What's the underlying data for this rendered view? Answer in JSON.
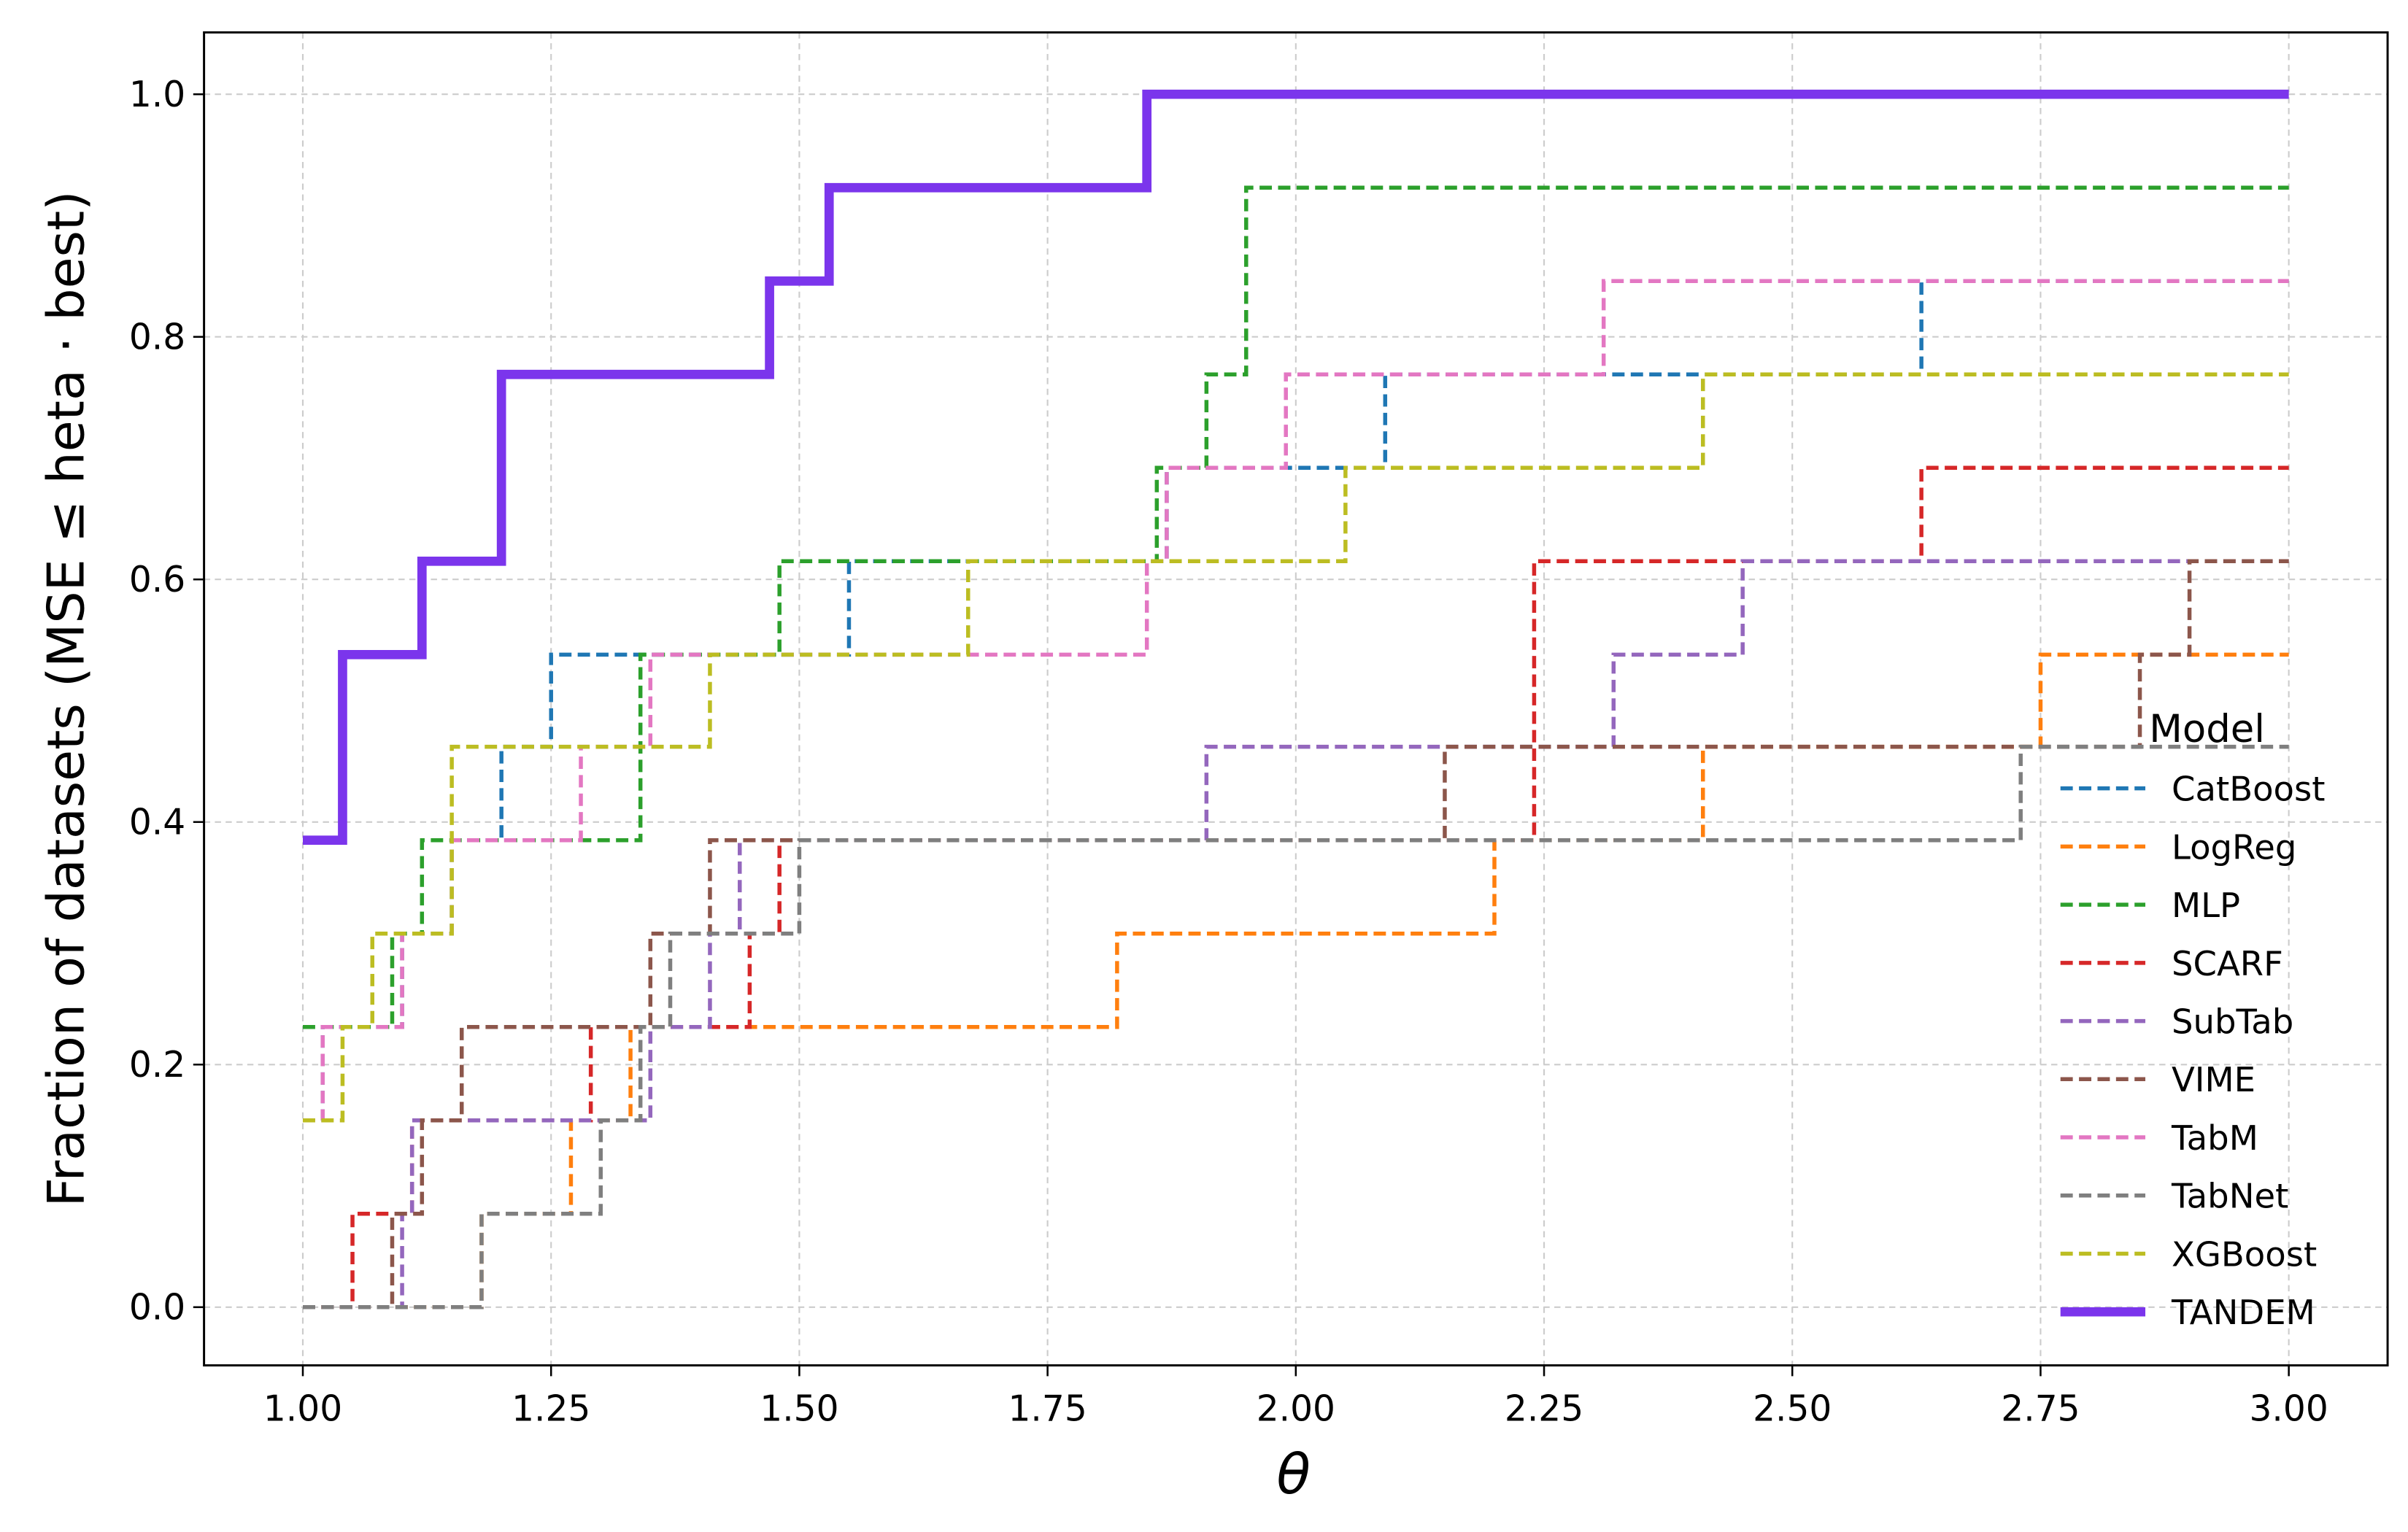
{
  "chart_data": {
    "type": "step",
    "xlabel": "θ",
    "ylabel": "Fraction of datasets (MSE  ≤ heta · best)",
    "xlim": [
      0.9005,
      3.0995
    ],
    "ylim": [
      -0.048,
      1.051
    ],
    "xticks": [
      {
        "value": 1.0,
        "label": "1.00"
      },
      1.25,
      {
        "value": 1.5,
        "label": "1.50"
      },
      1.75,
      {
        "value": 2.0,
        "label": "2.00"
      },
      2.25,
      {
        "value": 2.5,
        "label": "2.50"
      },
      2.75,
      {
        "value": 3.0,
        "label": "3.00"
      }
    ],
    "yticks": [
      {
        "value": 0,
        "label": "0.0"
      },
      0.2,
      0.4,
      0.6,
      0.8,
      {
        "value": 1,
        "label": "1.0"
      }
    ],
    "grid": true,
    "legend_title": "Model",
    "legend_position": "lower right",
    "series": [
      {
        "name": "CatBoost",
        "color": "#1f77b4",
        "x": [
          1.0,
          1.02,
          1.1,
          1.15,
          1.2,
          1.25,
          1.55,
          1.87,
          2.09,
          2.63,
          3.0
        ],
        "values": [
          0.154,
          0.231,
          0.308,
          0.385,
          0.462,
          0.538,
          0.615,
          0.692,
          0.769,
          0.846,
          0.846
        ]
      },
      {
        "name": "LogReg",
        "color": "#ff7f0e",
        "x": [
          1.0,
          1.18,
          1.27,
          1.33,
          1.82,
          2.2,
          2.41,
          2.75,
          3.0
        ],
        "values": [
          0,
          0.077,
          0.154,
          0.231,
          0.308,
          0.385,
          0.462,
          0.538,
          0.538
        ]
      },
      {
        "name": "MLP",
        "color": "#2ca02c",
        "x": [
          1.0,
          1.09,
          1.12,
          1.34,
          1.48,
          1.86,
          1.91,
          1.95,
          3.0
        ],
        "values": [
          0.231,
          0.308,
          0.385,
          0.538,
          0.615,
          0.692,
          0.769,
          0.923,
          0.923
        ]
      },
      {
        "name": "SCARF",
        "color": "#d62728",
        "x": [
          1.0,
          1.05,
          1.11,
          1.29,
          1.45,
          1.48,
          2.24,
          2.63,
          3.0
        ],
        "values": [
          0,
          0.077,
          0.154,
          0.231,
          0.308,
          0.385,
          0.615,
          0.692,
          0.692
        ]
      },
      {
        "name": "SubTab",
        "color": "#9467bd",
        "x": [
          1.0,
          1.1,
          1.11,
          1.35,
          1.41,
          1.44,
          1.91,
          2.32,
          2.45,
          3.0
        ],
        "values": [
          0,
          0.077,
          0.154,
          0.231,
          0.308,
          0.385,
          0.462,
          0.538,
          0.615,
          0.615
        ]
      },
      {
        "name": "VIME",
        "color": "#8c564b",
        "x": [
          1.0,
          1.09,
          1.12,
          1.16,
          1.35,
          1.41,
          2.15,
          2.85,
          2.9,
          3.0
        ],
        "values": [
          0,
          0.077,
          0.154,
          0.231,
          0.308,
          0.385,
          0.462,
          0.538,
          0.615,
          0.615
        ]
      },
      {
        "name": "TabM",
        "color": "#e377c2",
        "x": [
          1.0,
          1.02,
          1.1,
          1.15,
          1.28,
          1.35,
          1.85,
          1.87,
          1.99,
          2.31,
          3.0
        ],
        "values": [
          0.154,
          0.231,
          0.308,
          0.385,
          0.462,
          0.538,
          0.615,
          0.692,
          0.769,
          0.846,
          0.846
        ]
      },
      {
        "name": "TabNet",
        "color": "#7f7f7f",
        "x": [
          1.0,
          1.18,
          1.3,
          1.34,
          1.37,
          1.5,
          2.73,
          3.0
        ],
        "values": [
          0,
          0.077,
          0.154,
          0.231,
          0.308,
          0.385,
          0.462,
          0.462
        ]
      },
      {
        "name": "XGBoost",
        "color": "#bcbd22",
        "x": [
          1.0,
          1.04,
          1.07,
          1.15,
          1.41,
          1.67,
          2.05,
          2.41,
          3.0
        ],
        "values": [
          0.154,
          0.231,
          0.308,
          0.462,
          0.538,
          0.615,
          0.692,
          0.769,
          0.769
        ]
      },
      {
        "name": "TANDEM",
        "color": "#7b35ec",
        "bold": true,
        "x": [
          1.0,
          1.04,
          1.12,
          1.2,
          1.47,
          1.53,
          1.85,
          3.0
        ],
        "values": [
          0.385,
          0.538,
          0.615,
          0.769,
          0.846,
          0.923,
          1.0,
          1.0
        ]
      }
    ]
  }
}
